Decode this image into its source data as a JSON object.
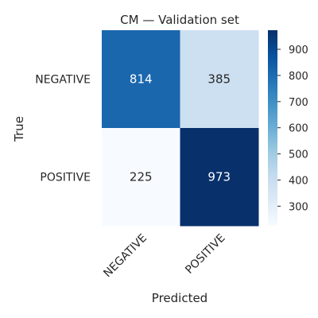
{
  "chart_data": {
    "type": "heatmap",
    "title": "CM — Validation set",
    "xlabel": "Predicted",
    "ylabel": "True",
    "x_categories": [
      "NEGATIVE",
      "POSITIVE"
    ],
    "y_categories": [
      "NEGATIVE",
      "POSITIVE"
    ],
    "values": [
      [
        814,
        385
      ],
      [
        225,
        973
      ]
    ],
    "colormap": "Blues",
    "color_range": [
      225,
      973
    ],
    "colorbar_ticks": [
      300,
      400,
      500,
      600,
      700,
      800,
      900
    ],
    "grid": false
  }
}
